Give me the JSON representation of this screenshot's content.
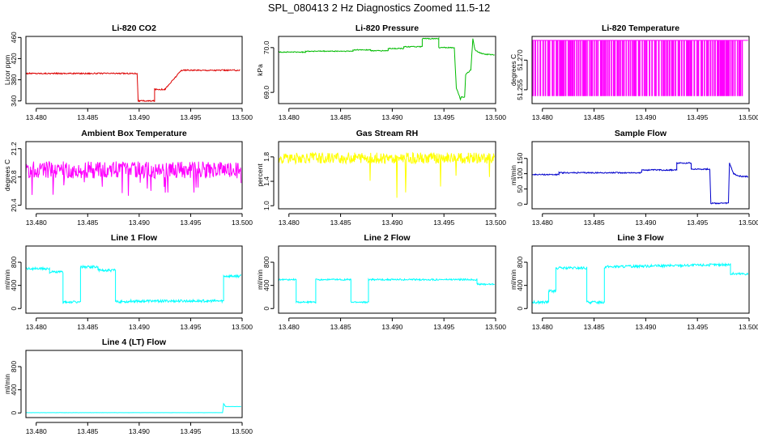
{
  "title": "SPL_080413  2 Hz Diagnostics Zoomed 11.5-12",
  "chart_data": [
    {
      "id": "co2",
      "type": "line",
      "title": "Li-820 CO2",
      "ylabel": "Licor ppm",
      "color": "#dd0000",
      "xlim": [
        13.479,
        13.5
      ],
      "ylim": [
        335,
        462
      ],
      "xticks": [
        "13.480",
        "13.485",
        "13.490",
        "13.495",
        "13.500"
      ],
      "xtick_values": [
        13.48,
        13.485,
        13.49,
        13.495,
        13.5
      ],
      "yticks": [
        "340",
        "380",
        "420",
        "460"
      ],
      "ytick_values": [
        340,
        380,
        420,
        460
      ],
      "noise": 1.2,
      "x": [
        13.479,
        13.4898,
        13.4898,
        13.4899,
        13.4899,
        13.4915,
        13.4915,
        13.4925,
        13.4925,
        13.4941,
        13.4941,
        13.4983,
        13.4983,
        13.4998
      ],
      "y": [
        392,
        392,
        392,
        340,
        340,
        340,
        362,
        362,
        362,
        398,
        398,
        398,
        398,
        398
      ]
    },
    {
      "id": "pressure",
      "type": "line",
      "title": "Li-820 Pressure",
      "ylabel": "kPa",
      "color": "#00bb00",
      "xlim": [
        13.479,
        13.5
      ],
      "ylim": [
        68.75,
        70.25
      ],
      "xticks": [
        "13.480",
        "13.485",
        "13.490",
        "13.495",
        "13.500"
      ],
      "xtick_values": [
        13.48,
        13.485,
        13.49,
        13.495,
        13.5
      ],
      "yticks": [
        "69.0",
        "70.0"
      ],
      "ytick_values": [
        69.0,
        70.0
      ],
      "noise": 0.01,
      "x": [
        13.479,
        13.4816,
        13.4816,
        13.4862,
        13.4862,
        13.4879,
        13.4879,
        13.4896,
        13.4896,
        13.4911,
        13.4911,
        13.4929,
        13.4929,
        13.4945,
        13.4945,
        13.496,
        13.4962,
        13.4966,
        13.4967,
        13.497,
        13.4971,
        13.4976,
        13.4978,
        13.498,
        13.4985,
        13.499,
        13.4999
      ],
      "y": [
        69.9,
        69.9,
        69.92,
        69.92,
        69.95,
        69.95,
        69.93,
        69.93,
        69.98,
        69.98,
        70.02,
        70.02,
        70.2,
        70.2,
        70.0,
        70.0,
        69.1,
        68.85,
        68.9,
        68.9,
        69.4,
        69.5,
        70.2,
        69.95,
        69.88,
        69.85,
        69.84
      ]
    },
    {
      "id": "licor-temp",
      "type": "line",
      "title": "Li-820 Temperature",
      "ylabel": "degrees C",
      "color": "#ff00ff",
      "xlim": [
        13.479,
        13.5
      ],
      "ylim": [
        51.248,
        51.282
      ],
      "xticks": [
        "13.480",
        "13.485",
        "13.490",
        "13.495",
        "13.500"
      ],
      "xtick_values": [
        13.48,
        13.485,
        13.49,
        13.495,
        13.5
      ],
      "yticks": [
        "51.255",
        "51.270"
      ],
      "ytick_values": [
        51.255,
        51.27
      ],
      "noise": 0,
      "x": [
        13.479,
        13.4999
      ],
      "y": [
        51.28,
        51.28
      ]
    },
    {
      "id": "box-temp",
      "type": "line",
      "title": "Ambient Box Temperature",
      "ylabel": "degrees C",
      "color": "#ff00ff",
      "xlim": [
        13.479,
        13.5
      ],
      "ylim": [
        20.35,
        21.3
      ],
      "xticks": [
        "13.480",
        "13.485",
        "13.490",
        "13.495",
        "13.500"
      ],
      "xtick_values": [
        13.48,
        13.485,
        13.49,
        13.495,
        13.5
      ],
      "yticks": [
        "20.4",
        "20.8",
        "21.2"
      ],
      "ytick_values": [
        20.4,
        20.8,
        21.2
      ],
      "noise": 0.12,
      "x": [
        13.479,
        13.4999
      ],
      "y": [
        20.9,
        20.9
      ]
    },
    {
      "id": "rh",
      "type": "line",
      "title": "Gas Stream RH",
      "ylabel": "percent",
      "color": "#ffff00",
      "xlim": [
        13.479,
        13.5
      ],
      "ylim": [
        0.95,
        2.05
      ],
      "xticks": [
        "13.480",
        "13.485",
        "13.490",
        "13.495",
        "13.500"
      ],
      "xtick_values": [
        13.48,
        13.485,
        13.49,
        13.495,
        13.5
      ],
      "yticks": [
        "1.0",
        "1.4",
        "1.8"
      ],
      "ytick_values": [
        1.0,
        1.4,
        1.8
      ],
      "noise": 0.09,
      "x": [
        13.479,
        13.4999
      ],
      "y": [
        1.78,
        1.78
      ]
    },
    {
      "id": "sample-flow",
      "type": "line",
      "title": "Sample Flow",
      "ylabel": "ml/min",
      "color": "#0000cc",
      "xlim": [
        13.479,
        13.5
      ],
      "ylim": [
        -15,
        205
      ],
      "xticks": [
        "13.480",
        "13.485",
        "13.490",
        "13.495",
        "13.500"
      ],
      "xtick_values": [
        13.48,
        13.485,
        13.49,
        13.495,
        13.5
      ],
      "yticks": [
        "0",
        "50",
        "100",
        "150"
      ],
      "ytick_values": [
        0,
        50,
        100,
        150
      ],
      "noise": 2,
      "x": [
        13.479,
        13.4816,
        13.4816,
        13.4896,
        13.4896,
        13.493,
        13.493,
        13.4944,
        13.4944,
        13.4962,
        13.4963,
        13.498,
        13.4981,
        13.4985,
        13.499,
        13.4999
      ],
      "y": [
        97,
        97,
        103,
        103,
        112,
        112,
        135,
        135,
        115,
        115,
        3,
        3,
        135,
        100,
        92,
        90
      ]
    },
    {
      "id": "line1-flow",
      "type": "line",
      "title": "Line 1 Flow",
      "ylabel": "ml/min",
      "color": "#00ffff",
      "xlim": [
        13.479,
        13.5
      ],
      "ylim": [
        -80,
        1080
      ],
      "xticks": [
        "13.480",
        "13.485",
        "13.490",
        "13.495",
        "13.500"
      ],
      "xtick_values": [
        13.48,
        13.485,
        13.49,
        13.495,
        13.5
      ],
      "yticks": [
        "0",
        "400",
        "800"
      ],
      "ytick_values": [
        0,
        400,
        800
      ],
      "noise": 22,
      "x": [
        13.479,
        13.4813,
        13.4813,
        13.4826,
        13.4826,
        13.4843,
        13.4843,
        13.486,
        13.486,
        13.4877,
        13.4877,
        13.489,
        13.489,
        13.4982,
        13.4982,
        13.4999
      ],
      "y": [
        690,
        690,
        630,
        630,
        110,
        110,
        720,
        720,
        660,
        660,
        120,
        120,
        130,
        130,
        560,
        560
      ]
    },
    {
      "id": "line2-flow",
      "type": "line",
      "title": "Line 2 Flow",
      "ylabel": "ml/min",
      "color": "#00ffff",
      "xlim": [
        13.479,
        13.5
      ],
      "ylim": [
        -80,
        1080
      ],
      "xticks": [
        "13.480",
        "13.485",
        "13.490",
        "13.495",
        "13.500"
      ],
      "xtick_values": [
        13.48,
        13.485,
        13.49,
        13.495,
        13.5
      ],
      "yticks": [
        "0",
        "400",
        "800"
      ],
      "ytick_values": [
        0,
        400,
        800
      ],
      "noise": 14,
      "x": [
        13.479,
        13.4807,
        13.4807,
        13.4826,
        13.4826,
        13.486,
        13.486,
        13.4877,
        13.4877,
        13.4982,
        13.4982,
        13.4999
      ],
      "y": [
        500,
        500,
        110,
        110,
        500,
        500,
        110,
        110,
        500,
        500,
        420,
        420
      ]
    },
    {
      "id": "line3-flow",
      "type": "line",
      "title": "Line 3 Flow",
      "ylabel": "ml/min",
      "color": "#00ffff",
      "xlim": [
        13.479,
        13.5
      ],
      "ylim": [
        -80,
        1080
      ],
      "xticks": [
        "13.480",
        "13.485",
        "13.490",
        "13.495",
        "13.500"
      ],
      "xtick_values": [
        13.48,
        13.485,
        13.49,
        13.495,
        13.5
      ],
      "yticks": [
        "0",
        "400",
        "800"
      ],
      "ytick_values": [
        0,
        400,
        800
      ],
      "noise": 22,
      "x": [
        13.479,
        13.4806,
        13.4806,
        13.4813,
        13.4813,
        13.4843,
        13.4843,
        13.486,
        13.486,
        13.4982,
        13.4982,
        13.4999
      ],
      "y": [
        110,
        110,
        300,
        300,
        700,
        700,
        110,
        110,
        720,
        760,
        600,
        600
      ]
    },
    {
      "id": "line4-flow",
      "type": "line",
      "title": "Line 4 (LT) Flow",
      "ylabel": "ml/min",
      "color": "#00ffff",
      "xlim": [
        13.479,
        13.5
      ],
      "ylim": [
        -80,
        1080
      ],
      "xticks": [
        "13.480",
        "13.485",
        "13.490",
        "13.495",
        "13.500"
      ],
      "xtick_values": [
        13.48,
        13.485,
        13.49,
        13.495,
        13.5
      ],
      "yticks": [
        "0",
        "400",
        "800"
      ],
      "ytick_values": [
        0,
        400,
        800
      ],
      "noise": 1,
      "x": [
        13.479,
        13.4981,
        13.4982,
        13.4984,
        13.4987,
        13.4999
      ],
      "y": [
        5,
        5,
        160,
        110,
        110,
        110
      ]
    }
  ]
}
